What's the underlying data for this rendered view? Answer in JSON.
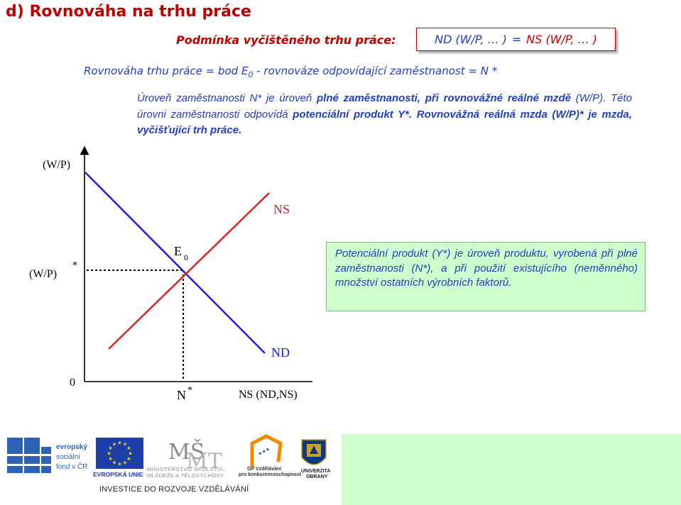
{
  "title": "d) Rovnováha na trhu práce",
  "condition": {
    "label": "Podmínka vyčištěného trhu práce:",
    "nd": "ND (W/P, … )",
    "eq": "=",
    "ns": "NS (W/P, … )"
  },
  "equilibrium": {
    "part1": "Rovnováha trhu práce = bod E",
    "sub": "0",
    "part2": " - rovnováze odpovídající zaměstnanost = N *"
  },
  "paragraph": {
    "t1": "Úroveň zaměstnanosti N* je úroveň ",
    "b1": "plné zaměstnanosti, při rovnovážné reálné mzdě",
    "t2": " (W/P). Této úrovni zaměstnanosti odpovídá ",
    "b2": "potenciální produkt Y*. Rovnovážná reálná mzda (W/P)* je mzda, vyčišťující trh práce."
  },
  "diagram": {
    "y_axis_label": "(W/P)",
    "y_star_label": "(W/P)",
    "y_star_sup": "*",
    "origin_label": "0",
    "x_star_label": "N",
    "x_star_sup": "*",
    "x_axis_label": "NS (ND,NS)",
    "ns_label": "NS",
    "nd_label": "ND",
    "point_label": "E",
    "point_sub": "0",
    "ns_color": "#e02020",
    "nd_color": "#1f1fe0"
  },
  "info_box": "Potenciální produkt (Y*) je úroveň produktu, vyrobená při plné zaměstnanosti (N*), a při použití existujícího (neměnného) množství ostatních výrobních faktorů.",
  "footer": {
    "esf_text": [
      "evropský",
      "sociální",
      "fond v ČR"
    ],
    "eu_text": "EVROPSKÁ UNIE",
    "msmt_text": [
      "MINISTERSTVO ŠKOLSTVÍ,",
      "MLÁDEŽE A TĚLOVÝCHOVY"
    ],
    "op_text": [
      "OP Vzdělávání",
      "pro konkurenceschopnost"
    ],
    "uo_text": [
      "UNIVERZITA",
      "OBRANY"
    ],
    "invest_text": "INVESTICE DO ROZVOJE VZDĚLÁVÁNÍ"
  }
}
